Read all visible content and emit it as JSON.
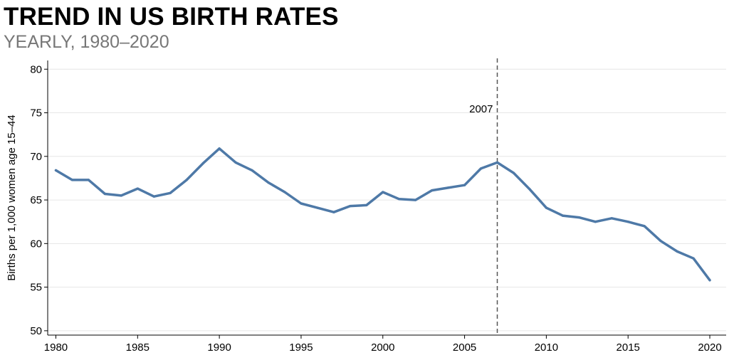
{
  "header": {
    "title": "TREND IN US BIRTH RATES",
    "subtitle": "YEARLY, 1980–2020"
  },
  "colors": {
    "line": "#4e79a7",
    "gridline": "#e6e6e6",
    "annotation": "#555555",
    "subtitle": "#777777"
  },
  "chart_data": {
    "type": "line",
    "title": "TREND IN US BIRTH RATES",
    "subtitle": "YEARLY, 1980–2020",
    "xlabel": "",
    "ylabel": "Births per 1,000 women age 15–44",
    "xlim": [
      1979.5,
      2021
    ],
    "ylim": [
      49.5,
      81
    ],
    "x_ticks": [
      1980,
      1985,
      1990,
      1995,
      2000,
      2005,
      2010,
      2015,
      2020
    ],
    "y_ticks": [
      50,
      55,
      60,
      65,
      70,
      75,
      80
    ],
    "grid": "horizontal",
    "annotations": [
      {
        "type": "vertical-line",
        "x": 2007,
        "label": "2007",
        "style": "dashed"
      }
    ],
    "x": [
      1980,
      1981,
      1982,
      1983,
      1984,
      1985,
      1986,
      1987,
      1988,
      1989,
      1990,
      1991,
      1992,
      1993,
      1994,
      1995,
      1996,
      1997,
      1998,
      1999,
      2000,
      2001,
      2002,
      2003,
      2004,
      2005,
      2006,
      2007,
      2008,
      2009,
      2010,
      2011,
      2012,
      2013,
      2014,
      2015,
      2016,
      2017,
      2018,
      2019,
      2020
    ],
    "series": [
      {
        "values": [
          68.4,
          67.3,
          67.3,
          65.7,
          65.5,
          66.3,
          65.4,
          65.8,
          67.3,
          69.2,
          70.9,
          69.3,
          68.4,
          67.0,
          65.9,
          64.6,
          64.1,
          63.6,
          64.3,
          64.4,
          65.9,
          65.1,
          65.0,
          66.1,
          66.4,
          66.7,
          68.6,
          69.3,
          68.1,
          66.2,
          64.1,
          63.2,
          63.0,
          62.5,
          62.9,
          62.5,
          62.0,
          60.3,
          59.1,
          58.3,
          55.8
        ]
      }
    ]
  }
}
